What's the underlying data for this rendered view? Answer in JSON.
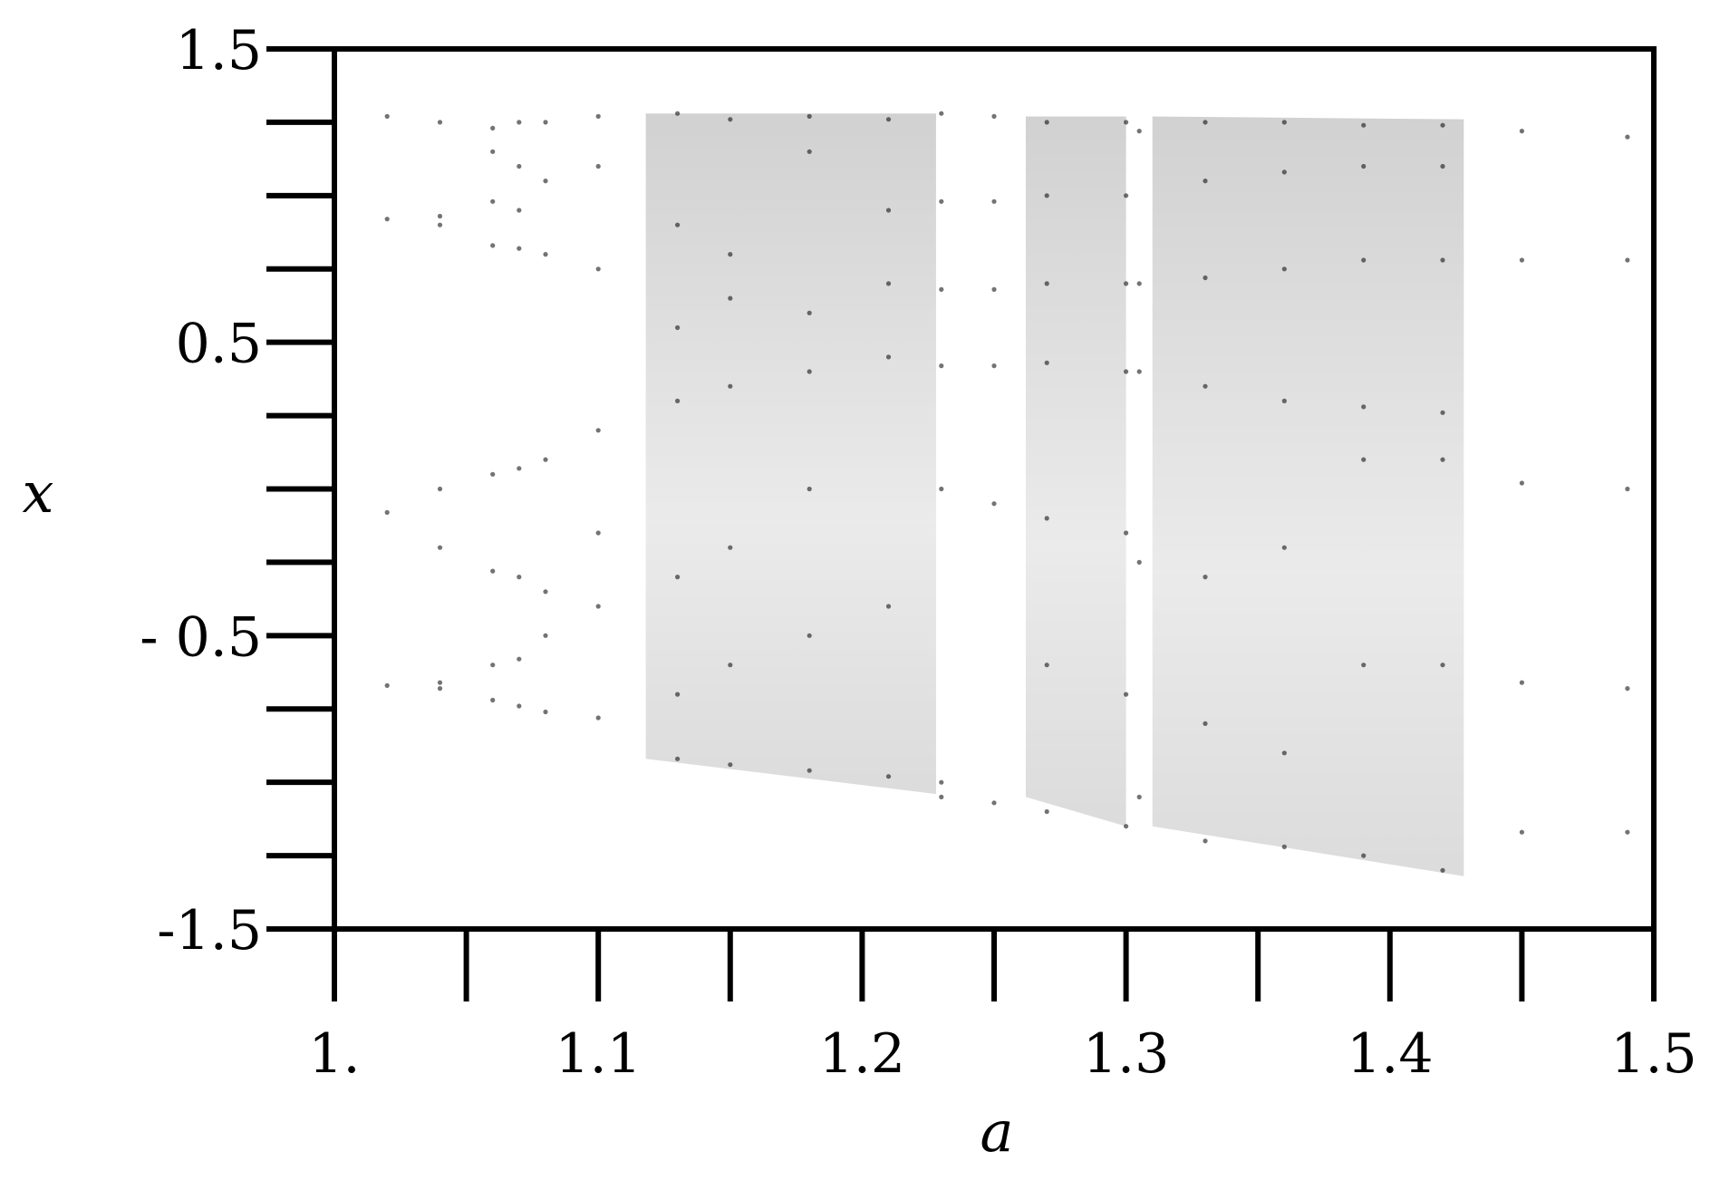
{
  "chart_data": {
    "type": "scatter",
    "xlabel": "a",
    "ylabel": "x",
    "xlim": [
      1.0,
      1.5
    ],
    "ylim": [
      -1.5,
      1.5
    ],
    "x_ticks": [
      {
        "value": 1.0,
        "label": "1."
      },
      {
        "value": 1.1,
        "label": "1.1"
      },
      {
        "value": 1.2,
        "label": "1.2"
      },
      {
        "value": 1.3,
        "label": "1.3"
      },
      {
        "value": 1.4,
        "label": "1.4"
      },
      {
        "value": 1.5,
        "label": "1.5"
      }
    ],
    "x_minor_ticks": [
      1.05,
      1.15,
      1.25,
      1.35,
      1.45
    ],
    "y_ticks": [
      {
        "value": 1.5,
        "label": "1.5"
      },
      {
        "value": 0.5,
        "label": "0.5"
      },
      {
        "value": -0.5,
        "label": "- 0.5"
      },
      {
        "value": -1.5,
        "label": "-1.5"
      }
    ],
    "y_minor_ticks": [
      1.25,
      1.0,
      0.75,
      0.25,
      0.0,
      -0.25,
      -0.75,
      -1.0,
      -1.25
    ],
    "grid": false,
    "point_color": "#000000",
    "point_opacity": 0.05,
    "series": [
      {
        "values": [
          [
            1.0,
            1.27
          ],
          [
            1.0,
            0.95
          ],
          [
            1.0,
            -0.1
          ],
          [
            1.0,
            -0.67
          ],
          [
            1.02,
            1.27
          ],
          [
            1.02,
            0.92
          ],
          [
            1.02,
            -0.08
          ],
          [
            1.02,
            -0.67
          ],
          [
            1.04,
            1.25
          ],
          [
            1.04,
            0.9
          ],
          [
            1.04,
            0.93
          ],
          [
            1.04,
            0.0
          ],
          [
            1.04,
            -0.2
          ],
          [
            1.04,
            -0.66
          ],
          [
            1.04,
            -0.68
          ],
          [
            1.06,
            1.23
          ],
          [
            1.06,
            1.15
          ],
          [
            1.06,
            0.98
          ],
          [
            1.06,
            0.83
          ],
          [
            1.06,
            0.05
          ],
          [
            1.06,
            -0.28
          ],
          [
            1.06,
            -0.6
          ],
          [
            1.06,
            -0.72
          ],
          [
            1.07,
            1.25
          ],
          [
            1.07,
            1.1
          ],
          [
            1.07,
            0.95
          ],
          [
            1.07,
            0.82
          ],
          [
            1.07,
            0.07
          ],
          [
            1.07,
            -0.3
          ],
          [
            1.07,
            -0.58
          ],
          [
            1.07,
            -0.74
          ],
          [
            1.08,
            1.25
          ],
          [
            1.08,
            1.05
          ],
          [
            1.08,
            0.8
          ],
          [
            1.08,
            0.1
          ],
          [
            1.08,
            -0.35
          ],
          [
            1.08,
            -0.5
          ],
          [
            1.08,
            -0.76
          ],
          [
            1.1,
            1.27
          ],
          [
            1.1,
            1.1
          ],
          [
            1.1,
            0.75
          ],
          [
            1.1,
            0.2
          ],
          [
            1.1,
            -0.15
          ],
          [
            1.1,
            -0.4
          ],
          [
            1.1,
            -0.78
          ],
          [
            1.13,
            1.28
          ],
          [
            1.13,
            0.9
          ],
          [
            1.13,
            0.55
          ],
          [
            1.13,
            0.3
          ],
          [
            1.13,
            -0.3
          ],
          [
            1.13,
            -0.7
          ],
          [
            1.13,
            -0.92
          ],
          [
            1.15,
            1.26
          ],
          [
            1.15,
            0.8
          ],
          [
            1.15,
            0.65
          ],
          [
            1.15,
            0.35
          ],
          [
            1.15,
            -0.2
          ],
          [
            1.15,
            -0.6
          ],
          [
            1.15,
            -0.94
          ],
          [
            1.18,
            1.27
          ],
          [
            1.18,
            1.15
          ],
          [
            1.18,
            0.6
          ],
          [
            1.18,
            0.4
          ],
          [
            1.18,
            0.0
          ],
          [
            1.18,
            -0.5
          ],
          [
            1.18,
            -0.96
          ],
          [
            1.21,
            1.26
          ],
          [
            1.21,
            0.95
          ],
          [
            1.21,
            0.7
          ],
          [
            1.21,
            0.45
          ],
          [
            1.21,
            -0.4
          ],
          [
            1.21,
            -0.98
          ],
          [
            1.23,
            1.28
          ],
          [
            1.23,
            0.98
          ],
          [
            1.23,
            0.68
          ],
          [
            1.23,
            0.42
          ],
          [
            1.23,
            0.0
          ],
          [
            1.23,
            -1.0
          ],
          [
            1.23,
            -1.05
          ],
          [
            1.25,
            1.27
          ],
          [
            1.25,
            0.98
          ],
          [
            1.25,
            0.68
          ],
          [
            1.25,
            0.42
          ],
          [
            1.25,
            -0.05
          ],
          [
            1.25,
            -1.07
          ],
          [
            1.27,
            1.25
          ],
          [
            1.27,
            1.0
          ],
          [
            1.27,
            0.7
          ],
          [
            1.27,
            0.43
          ],
          [
            1.27,
            -0.1
          ],
          [
            1.27,
            -0.6
          ],
          [
            1.27,
            -1.1
          ],
          [
            1.3,
            1.25
          ],
          [
            1.3,
            1.0
          ],
          [
            1.3,
            0.7
          ],
          [
            1.3,
            0.4
          ],
          [
            1.3,
            -0.15
          ],
          [
            1.3,
            -0.7
          ],
          [
            1.3,
            -1.15
          ],
          [
            1.305,
            1.22
          ],
          [
            1.305,
            0.7
          ],
          [
            1.305,
            0.4
          ],
          [
            1.305,
            -0.25
          ],
          [
            1.305,
            -1.05
          ],
          [
            1.33,
            1.25
          ],
          [
            1.33,
            1.05
          ],
          [
            1.33,
            0.72
          ],
          [
            1.33,
            0.35
          ],
          [
            1.33,
            -0.3
          ],
          [
            1.33,
            -0.8
          ],
          [
            1.33,
            -1.2
          ],
          [
            1.36,
            1.25
          ],
          [
            1.36,
            1.08
          ],
          [
            1.36,
            0.75
          ],
          [
            1.36,
            0.3
          ],
          [
            1.36,
            -0.2
          ],
          [
            1.36,
            -0.9
          ],
          [
            1.36,
            -1.22
          ],
          [
            1.39,
            1.24
          ],
          [
            1.39,
            1.1
          ],
          [
            1.39,
            0.78
          ],
          [
            1.39,
            0.28
          ],
          [
            1.39,
            0.1
          ],
          [
            1.39,
            -0.6
          ],
          [
            1.39,
            -1.25
          ],
          [
            1.42,
            1.24
          ],
          [
            1.42,
            1.1
          ],
          [
            1.42,
            0.78
          ],
          [
            1.42,
            0.26
          ],
          [
            1.42,
            0.1
          ],
          [
            1.42,
            -0.6
          ],
          [
            1.42,
            -1.3
          ],
          [
            1.45,
            1.22
          ],
          [
            1.45,
            0.78
          ],
          [
            1.45,
            0.02
          ],
          [
            1.45,
            -0.66
          ],
          [
            1.45,
            -1.17
          ],
          [
            1.49,
            1.2
          ],
          [
            1.49,
            0.78
          ],
          [
            1.49,
            0.0
          ],
          [
            1.49,
            -0.68
          ],
          [
            1.49,
            -1.17
          ]
        ]
      }
    ]
  }
}
